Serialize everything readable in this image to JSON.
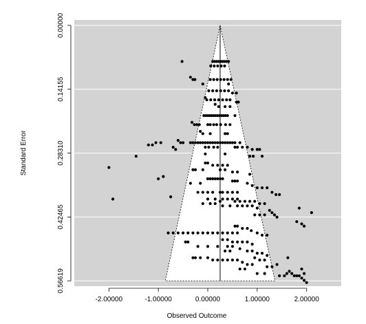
{
  "chart_data": {
    "type": "scatter",
    "title": "",
    "xlabel": "Observed Outcome",
    "ylabel": "Standard Error",
    "xlim": [
      -2.7,
      2.7
    ],
    "ylim": [
      0.578,
      -0.012
    ],
    "y_reversed": true,
    "x_ticks": [
      -2,
      -1,
      0,
      1,
      2
    ],
    "x_tick_labels": [
      "-2.00000",
      "-1.00000",
      "0.00000",
      "1.00000",
      "2.00000"
    ],
    "y_ticks": [
      0,
      0.14155,
      0.2831,
      0.42465,
      0.56619
    ],
    "y_tick_labels": [
      "0.00000",
      "0.14155",
      "0.28310",
      "0.42465",
      "0.56619"
    ],
    "center_estimate": 0.25,
    "funnel_multiplier": 1.96,
    "grid": true,
    "panel_color": "#d3d3d3",
    "funnel_color": "#ffffff",
    "point_color": "#000000",
    "points": [
      [
        0.1,
        0.08
      ],
      [
        0.14,
        0.08
      ],
      [
        0.18,
        0.08
      ],
      [
        0.22,
        0.08
      ],
      [
        0.26,
        0.08
      ],
      [
        0.3,
        0.08
      ],
      [
        0.34,
        0.08
      ],
      [
        0.38,
        0.08
      ],
      [
        0.42,
        0.08
      ],
      [
        -0.52,
        0.08
      ],
      [
        0.06,
        0.09
      ],
      [
        0.13,
        0.09
      ],
      [
        0.2,
        0.09
      ],
      [
        0.27,
        0.09
      ],
      [
        0.34,
        0.09
      ],
      [
        -0.35,
        0.115
      ],
      [
        -0.3,
        0.12
      ],
      [
        -0.26,
        0.12
      ],
      [
        0.05,
        0.12
      ],
      [
        0.12,
        0.12
      ],
      [
        0.19,
        0.12
      ],
      [
        0.26,
        0.12
      ],
      [
        0.33,
        0.12
      ],
      [
        0.4,
        0.12
      ],
      [
        0.47,
        0.12
      ],
      [
        -0.1,
        0.13
      ],
      [
        0.42,
        0.13
      ],
      [
        0.02,
        0.145
      ],
      [
        0.1,
        0.145
      ],
      [
        0.18,
        0.145
      ],
      [
        0.26,
        0.145
      ],
      [
        0.34,
        0.145
      ],
      [
        0.42,
        0.145
      ],
      [
        0.5,
        0.15
      ],
      [
        0.58,
        0.15
      ],
      [
        -0.05,
        0.16
      ],
      [
        -0.02,
        0.165
      ],
      [
        0.06,
        0.165
      ],
      [
        0.14,
        0.165
      ],
      [
        0.22,
        0.165
      ],
      [
        0.3,
        0.165
      ],
      [
        0.38,
        0.165
      ],
      [
        0.45,
        0.165
      ],
      [
        0.58,
        0.17
      ],
      [
        0.62,
        0.17
      ],
      [
        0.15,
        0.175
      ],
      [
        0.22,
        0.18
      ],
      [
        0.35,
        0.18
      ],
      [
        0.45,
        0.18
      ],
      [
        -0.08,
        0.2
      ],
      [
        -0.04,
        0.2
      ],
      [
        0.0,
        0.2
      ],
      [
        0.04,
        0.2
      ],
      [
        0.08,
        0.2
      ],
      [
        0.12,
        0.2
      ],
      [
        0.16,
        0.2
      ],
      [
        0.2,
        0.2
      ],
      [
        0.24,
        0.2
      ],
      [
        0.28,
        0.2
      ],
      [
        0.32,
        0.2
      ],
      [
        0.36,
        0.2
      ],
      [
        0.4,
        0.2
      ],
      [
        0.55,
        0.2
      ],
      [
        -0.32,
        0.215
      ],
      [
        -0.27,
        0.22
      ],
      [
        -0.22,
        0.22
      ],
      [
        -0.17,
        0.22
      ],
      [
        0.0,
        0.22
      ],
      [
        0.05,
        0.22
      ],
      [
        0.12,
        0.22
      ],
      [
        0.18,
        0.22
      ],
      [
        0.26,
        0.22
      ],
      [
        0.36,
        0.22
      ],
      [
        0.45,
        0.22
      ],
      [
        -0.15,
        0.235
      ],
      [
        -0.1,
        0.24
      ],
      [
        0.05,
        0.24
      ],
      [
        0.35,
        0.24
      ],
      [
        0.4,
        0.24
      ],
      [
        -0.6,
        0.255
      ],
      [
        -0.55,
        0.26
      ],
      [
        -0.5,
        0.26
      ],
      [
        -0.35,
        0.26
      ],
      [
        -0.3,
        0.26
      ],
      [
        -0.25,
        0.26
      ],
      [
        -0.2,
        0.26
      ],
      [
        -0.15,
        0.26
      ],
      [
        -0.1,
        0.26
      ],
      [
        -0.05,
        0.26
      ],
      [
        0.0,
        0.26
      ],
      [
        0.05,
        0.26
      ],
      [
        0.1,
        0.26
      ],
      [
        0.15,
        0.26
      ],
      [
        0.2,
        0.26
      ],
      [
        0.25,
        0.26
      ],
      [
        0.3,
        0.26
      ],
      [
        0.35,
        0.26
      ],
      [
        0.4,
        0.26
      ],
      [
        0.45,
        0.26
      ],
      [
        0.5,
        0.26
      ],
      [
        0.55,
        0.26
      ],
      [
        0.65,
        0.26
      ],
      [
        -1.2,
        0.265
      ],
      [
        -1.12,
        0.265
      ],
      [
        -1.05,
        0.26
      ],
      [
        -0.95,
        0.26
      ],
      [
        -0.05,
        0.27
      ],
      [
        0.02,
        0.27
      ],
      [
        0.12,
        0.27
      ],
      [
        0.2,
        0.27
      ],
      [
        0.55,
        0.27
      ],
      [
        0.6,
        0.27
      ],
      [
        0.7,
        0.27
      ],
      [
        0.8,
        0.27
      ],
      [
        -0.65,
        0.275
      ],
      [
        -0.7,
        0.27
      ],
      [
        0.9,
        0.275
      ],
      [
        1.0,
        0.275
      ],
      [
        1.05,
        0.275
      ],
      [
        -0.05,
        0.285
      ],
      [
        0.35,
        0.285
      ],
      [
        -1.45,
        0.29
      ],
      [
        0.85,
        0.29
      ],
      [
        0.92,
        0.29
      ],
      [
        1.1,
        0.29
      ],
      [
        -0.05,
        0.305
      ],
      [
        0.0,
        0.305
      ],
      [
        0.1,
        0.31
      ],
      [
        0.2,
        0.31
      ],
      [
        0.3,
        0.31
      ],
      [
        0.4,
        0.31
      ],
      [
        -2.0,
        0.315
      ],
      [
        -0.3,
        0.32
      ],
      [
        -0.25,
        0.32
      ],
      [
        -0.1,
        0.32
      ],
      [
        0.25,
        0.32
      ],
      [
        0.35,
        0.32
      ],
      [
        0.5,
        0.325
      ],
      [
        0.6,
        0.325
      ],
      [
        0.85,
        0.33
      ],
      [
        -1.0,
        0.34
      ],
      [
        -0.9,
        0.335
      ],
      [
        0.0,
        0.34
      ],
      [
        0.05,
        0.34
      ],
      [
        0.1,
        0.34
      ],
      [
        0.15,
        0.34
      ],
      [
        0.2,
        0.34
      ],
      [
        0.25,
        0.34
      ],
      [
        0.3,
        0.34
      ],
      [
        0.5,
        0.345
      ],
      [
        0.55,
        0.345
      ],
      [
        0.6,
        0.345
      ],
      [
        -0.35,
        0.35
      ],
      [
        -0.15,
        0.35
      ],
      [
        0.8,
        0.35
      ],
      [
        0.9,
        0.355
      ],
      [
        1.0,
        0.36
      ],
      [
        1.1,
        0.36
      ],
      [
        1.2,
        0.36
      ],
      [
        -0.2,
        0.37
      ],
      [
        -0.1,
        0.37
      ],
      [
        0.0,
        0.37
      ],
      [
        0.1,
        0.37
      ],
      [
        0.25,
        0.37
      ],
      [
        0.3,
        0.37
      ],
      [
        0.4,
        0.37
      ],
      [
        0.5,
        0.37
      ],
      [
        0.6,
        0.37
      ],
      [
        1.3,
        0.37
      ],
      [
        1.38,
        0.375
      ],
      [
        1.45,
        0.375
      ],
      [
        -0.75,
        0.38
      ],
      [
        0.0,
        0.385
      ],
      [
        0.15,
        0.385
      ],
      [
        0.3,
        0.385
      ],
      [
        0.4,
        0.385
      ],
      [
        0.5,
        0.385
      ],
      [
        0.6,
        0.385
      ],
      [
        -1.92,
        0.385
      ],
      [
        -0.1,
        0.395
      ],
      [
        0.05,
        0.395
      ],
      [
        0.15,
        0.395
      ],
      [
        0.3,
        0.4
      ],
      [
        0.45,
        0.4
      ],
      [
        0.6,
        0.4
      ],
      [
        0.7,
        0.4
      ],
      [
        0.8,
        0.4
      ],
      [
        0.9,
        0.4
      ],
      [
        1.0,
        0.405
      ],
      [
        0.25,
        0.39
      ],
      [
        0.55,
        0.39
      ],
      [
        0.65,
        0.39
      ],
      [
        0.75,
        0.39
      ],
      [
        0.85,
        0.39
      ],
      [
        0.95,
        0.39
      ],
      [
        1.05,
        0.395
      ],
      [
        1.15,
        0.395
      ],
      [
        1.25,
        0.41
      ],
      [
        1.3,
        0.415
      ],
      [
        0.95,
        0.42
      ],
      [
        1.05,
        0.42
      ],
      [
        1.15,
        0.42
      ],
      [
        1.35,
        0.42
      ],
      [
        1.4,
        0.425
      ],
      [
        1.85,
        0.405
      ],
      [
        2.1,
        0.415
      ],
      [
        -0.8,
        0.46
      ],
      [
        -0.7,
        0.46
      ],
      [
        -0.6,
        0.46
      ],
      [
        -0.5,
        0.46
      ],
      [
        -0.4,
        0.46
      ],
      [
        -0.3,
        0.46
      ],
      [
        -0.2,
        0.46
      ],
      [
        -0.1,
        0.46
      ],
      [
        0.0,
        0.46
      ],
      [
        0.1,
        0.46
      ],
      [
        0.2,
        0.46
      ],
      [
        0.3,
        0.46
      ],
      [
        0.4,
        0.46
      ],
      [
        0.5,
        0.46
      ],
      [
        0.6,
        0.46
      ],
      [
        0.55,
        0.445
      ],
      [
        0.6,
        0.445
      ],
      [
        0.7,
        0.45
      ],
      [
        0.8,
        0.45
      ],
      [
        0.88,
        0.455
      ],
      [
        1.0,
        0.46
      ],
      [
        1.1,
        0.465
      ],
      [
        1.2,
        0.465
      ],
      [
        1.8,
        0.435
      ],
      [
        1.9,
        0.44
      ],
      [
        1.95,
        0.445
      ],
      [
        0.3,
        0.475
      ],
      [
        0.4,
        0.475
      ],
      [
        0.5,
        0.48
      ],
      [
        0.6,
        0.48
      ],
      [
        0.7,
        0.48
      ],
      [
        0.8,
        0.48
      ],
      [
        0.9,
        0.485
      ],
      [
        -0.45,
        0.48
      ],
      [
        -0.4,
        0.48
      ],
      [
        -0.2,
        0.49
      ],
      [
        0.0,
        0.49
      ],
      [
        0.2,
        0.49
      ],
      [
        0.4,
        0.49
      ],
      [
        0.5,
        0.49
      ],
      [
        0.65,
        0.495
      ],
      [
        0.8,
        0.5
      ],
      [
        0.9,
        0.5
      ],
      [
        1.0,
        0.505
      ],
      [
        1.1,
        0.505
      ],
      [
        1.2,
        0.51
      ],
      [
        0.35,
        0.5
      ],
      [
        0.45,
        0.5
      ],
      [
        0.95,
        0.515
      ],
      [
        1.05,
        0.52
      ],
      [
        1.15,
        0.52
      ],
      [
        -0.3,
        0.515
      ],
      [
        -0.25,
        0.515
      ],
      [
        -0.15,
        0.515
      ],
      [
        0.0,
        0.515
      ],
      [
        0.1,
        0.52
      ],
      [
        0.2,
        0.52
      ],
      [
        0.3,
        0.52
      ],
      [
        0.4,
        0.52
      ],
      [
        0.5,
        0.52
      ],
      [
        0.6,
        0.52
      ],
      [
        0.7,
        0.525
      ],
      [
        0.8,
        0.53
      ],
      [
        0.9,
        0.53
      ],
      [
        1.2,
        0.535
      ],
      [
        1.3,
        0.535
      ],
      [
        0.65,
        0.54
      ],
      [
        0.75,
        0.54
      ],
      [
        1.15,
        0.55
      ],
      [
        1.0,
        0.55
      ],
      [
        1.4,
        0.53
      ],
      [
        1.62,
        0.515
      ],
      [
        1.45,
        0.555
      ],
      [
        1.65,
        0.545
      ],
      [
        1.6,
        0.55
      ],
      [
        1.55,
        0.555
      ],
      [
        1.7,
        0.55
      ],
      [
        1.75,
        0.555
      ],
      [
        1.8,
        0.555
      ],
      [
        1.85,
        0.555
      ],
      [
        1.95,
        0.55
      ],
      [
        1.95,
        0.565
      ],
      [
        1.9,
        0.56
      ],
      [
        2.0,
        0.57
      ],
      [
        1.9,
        0.54
      ]
    ]
  }
}
